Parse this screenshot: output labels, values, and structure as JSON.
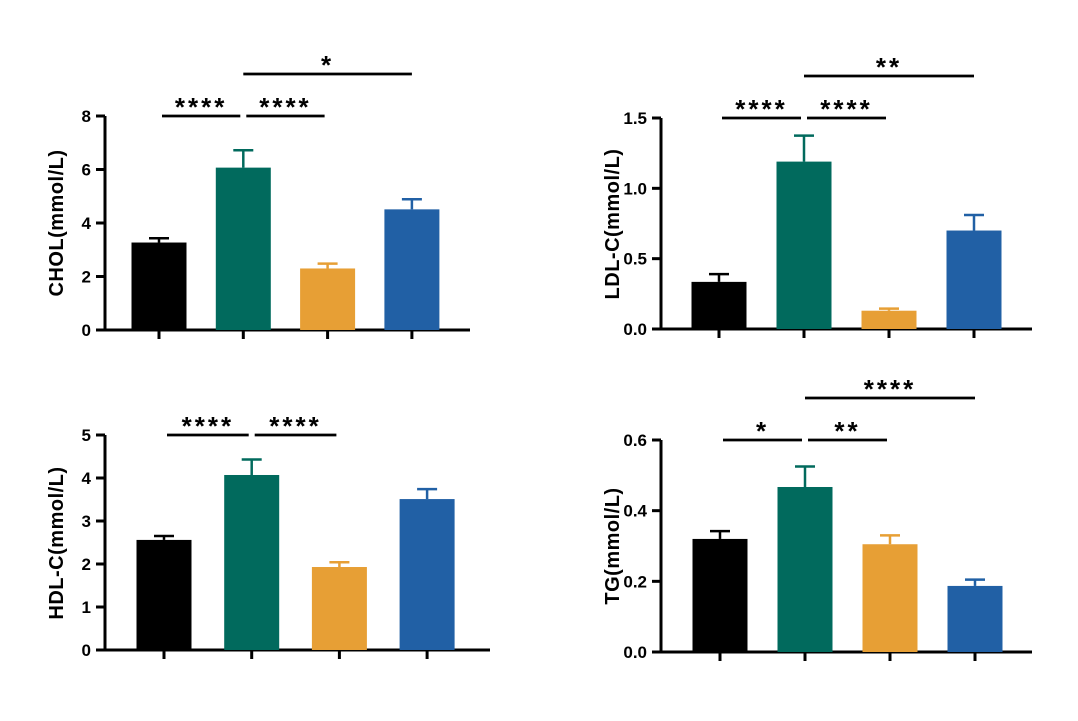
{
  "page": {
    "background_color": "#FFFFFF"
  },
  "palette": {
    "bar_colors": [
      "#000000",
      "#016A5D",
      "#E79F35",
      "#2160A5"
    ],
    "axis_color": "#000000",
    "significance_color": "#000000"
  },
  "chart_data": [
    {
      "id": "chol",
      "type": "bar",
      "title": "",
      "xlabel": "",
      "ylabel": "CHOL(mmol/L)",
      "ylim": [
        0,
        8
      ],
      "ytick_values": [
        0,
        2,
        4,
        6,
        8
      ],
      "ytick_labels": [
        "0",
        "2",
        "4",
        "6",
        "8"
      ],
      "grid": false,
      "legend": "none",
      "values": [
        3.27,
        6.07,
        2.3,
        4.51
      ],
      "errors_up": [
        0.16,
        0.65,
        0.18,
        0.38
      ],
      "significance": [
        {
          "from_bar": 1,
          "to_bar": 2,
          "label": "****",
          "row": "low"
        },
        {
          "from_bar": 2,
          "to_bar": 3,
          "label": "****",
          "row": "low"
        },
        {
          "from_bar": 2,
          "to_bar": 4,
          "label": "*",
          "row": "high"
        }
      ]
    },
    {
      "id": "ldl-c",
      "type": "bar",
      "title": "",
      "xlabel": "",
      "ylabel": "LDL-C(mmol/L)",
      "ylim": [
        0,
        1.5
      ],
      "ytick_values": [
        0,
        0.5,
        1.0,
        1.5
      ],
      "ytick_labels": [
        "0.0",
        "0.5",
        "1.0",
        "1.5"
      ],
      "grid": false,
      "legend": "none",
      "values": [
        0.335,
        1.19,
        0.13,
        0.7
      ],
      "errors_up": [
        0.055,
        0.185,
        0.015,
        0.11
      ],
      "significance": [
        {
          "from_bar": 1,
          "to_bar": 2,
          "label": "****",
          "row": "low"
        },
        {
          "from_bar": 2,
          "to_bar": 3,
          "label": "****",
          "row": "low"
        },
        {
          "from_bar": 2,
          "to_bar": 4,
          "label": "**",
          "row": "high"
        }
      ]
    },
    {
      "id": "hdl-c",
      "type": "bar",
      "title": "",
      "xlabel": "",
      "ylabel": "HDL-C(mmol/L)",
      "ylim": [
        0,
        5
      ],
      "ytick_values": [
        0,
        1,
        2,
        3,
        4,
        5
      ],
      "ytick_labels": [
        "0",
        "1",
        "2",
        "3",
        "4",
        "5"
      ],
      "grid": false,
      "legend": "none",
      "values": [
        2.56,
        4.07,
        1.93,
        3.51
      ],
      "errors_up": [
        0.09,
        0.36,
        0.11,
        0.23
      ],
      "significance": [
        {
          "from_bar": 1,
          "to_bar": 2,
          "label": "****",
          "row": "low"
        },
        {
          "from_bar": 2,
          "to_bar": 3,
          "label": "****",
          "row": "low"
        }
      ]
    },
    {
      "id": "tg",
      "type": "bar",
      "title": "",
      "xlabel": "",
      "ylabel": "TG(mmol/L)",
      "ylim": [
        0,
        0.6
      ],
      "ytick_values": [
        0,
        0.2,
        0.4,
        0.6
      ],
      "ytick_labels": [
        "0.0",
        "0.2",
        "0.4",
        "0.6"
      ],
      "grid": false,
      "legend": "none",
      "values": [
        0.32,
        0.467,
        0.305,
        0.187
      ],
      "errors_up": [
        0.022,
        0.058,
        0.025,
        0.018
      ],
      "significance": [
        {
          "from_bar": 1,
          "to_bar": 2,
          "label": "*",
          "row": "low"
        },
        {
          "from_bar": 2,
          "to_bar": 3,
          "label": "**",
          "row": "low"
        },
        {
          "from_bar": 2,
          "to_bar": 4,
          "label": "****",
          "row": "high"
        }
      ]
    }
  ]
}
